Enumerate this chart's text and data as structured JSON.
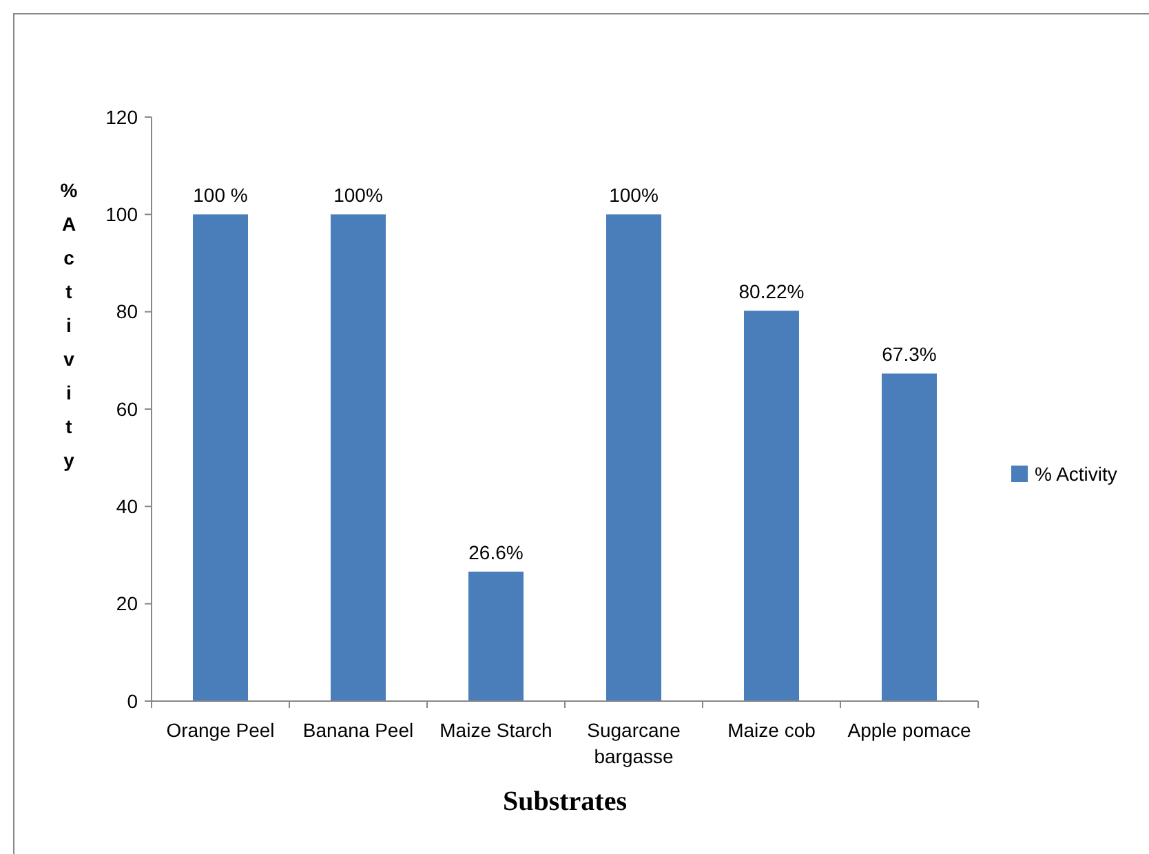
{
  "chart_data": {
    "type": "bar",
    "xlabel": "Substrates",
    "ylabel": "% Activity",
    "categories": [
      "Orange Peel",
      "Banana Peel",
      "Maize Starch",
      "Sugarcane bargasse",
      "Maize cob",
      "Apple pomace"
    ],
    "series": [
      {
        "name": "% Activity",
        "color": "#4a7ebb",
        "values": [
          100,
          100,
          26.6,
          100,
          80.22,
          67.3
        ],
        "value_labels": [
          "100 %",
          "100%",
          "26.6%",
          "100%",
          "80.22%",
          "67.3%"
        ]
      }
    ],
    "ylim": [
      0,
      120
    ],
    "yticks": [
      0,
      20,
      40,
      60,
      80,
      100,
      120
    ],
    "grid": false,
    "legend": "right"
  }
}
